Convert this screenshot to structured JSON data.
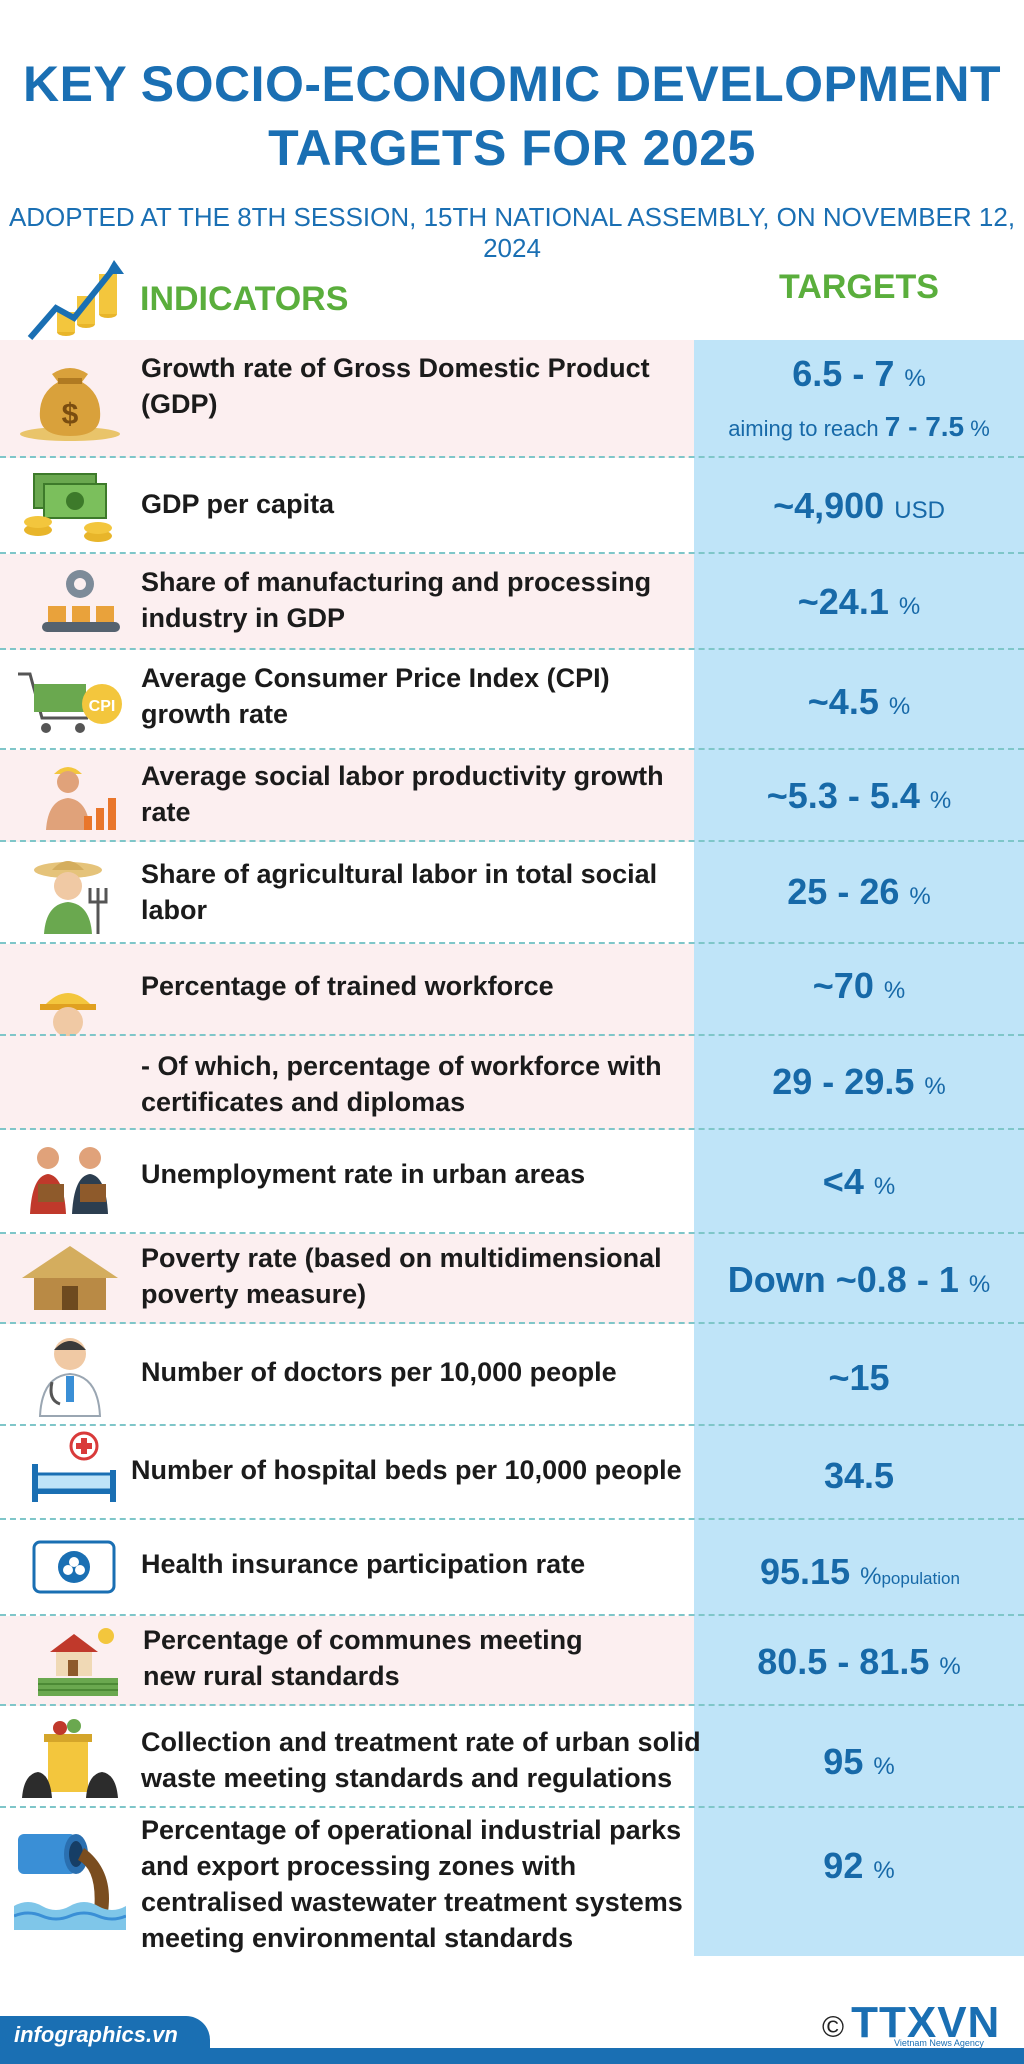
{
  "title_line1": "KEY SOCIO-ECONOMIC DEVELOPMENT",
  "title_line2": "TARGETS FOR 2025",
  "subtitle": "ADOPTED AT THE 8TH SESSION, 15TH NATIONAL ASSEMBLY, ON NOVEMBER 12, 2024",
  "header": {
    "indicators": "INDICATORS",
    "targets": "TARGETS"
  },
  "colors": {
    "title": "#1a6fb3",
    "header": "#5aae3c",
    "target_bg": "#bfe4f8",
    "row_pink": "#fceff0",
    "value": "#1769a8"
  },
  "rows": [
    {
      "icon": "money-bag-icon",
      "label": "Growth rate of Gross Domestic Product (GDP)",
      "value": "6.5 - 7",
      "unit": "%",
      "sub_prefix": "aiming to reach",
      "sub_value": "7 - 7.5",
      "sub_unit": "%"
    },
    {
      "icon": "cash-stack-icon",
      "label": "GDP per capita",
      "value": "~4,900",
      "unit": "USD"
    },
    {
      "icon": "factory-gear-icon",
      "label": "Share of manufacturing and processing industry in GDP",
      "value": "~24.1",
      "unit": "%"
    },
    {
      "icon": "cpi-cart-icon",
      "label": "Average Consumer Price Index (CPI) growth rate",
      "value": "~4.5",
      "unit": "%",
      "icon_text": "CPI"
    },
    {
      "icon": "worker-chart-icon",
      "label": "Average social labor productivity growth rate",
      "value": "~5.3 - 5.4",
      "unit": "%"
    },
    {
      "icon": "farmer-icon",
      "label": "Share of agricultural labor in total social labor",
      "value": "25 - 26",
      "unit": "%"
    },
    {
      "icon": "engineer-icon",
      "label": "Percentage of trained workforce",
      "value": "~70",
      "unit": "%"
    },
    {
      "icon": "",
      "label": "- Of which, percentage of workforce with certificates and diplomas",
      "value": "29 - 29.5",
      "unit": "%"
    },
    {
      "icon": "job-seekers-icon",
      "label": "Unemployment rate in urban areas",
      "value": "<4",
      "unit": "%"
    },
    {
      "icon": "hut-icon",
      "label": "Poverty rate (based on multidimensional poverty measure)",
      "value": "Down ~0.8 - 1",
      "unit": "%"
    },
    {
      "icon": "doctor-icon",
      "label": "Number of doctors per 10,000 people",
      "value": "~15",
      "unit": ""
    },
    {
      "icon": "hospital-bed-icon",
      "label": "Number of hospital beds per 10,000 people",
      "value": "34.5",
      "unit": ""
    },
    {
      "icon": "health-insurance-icon",
      "label": "Health insurance participation rate",
      "value": "95.15",
      "unit": "%",
      "unit2": "population"
    },
    {
      "icon": "rural-house-icon",
      "label": "Percentage of communes meeting new rural standards",
      "value": "80.5 - 81.5",
      "unit": "%"
    },
    {
      "icon": "waste-bin-icon",
      "label": "Collection and treatment rate of urban solid waste meeting standards and regulations",
      "value": "95",
      "unit": "%"
    },
    {
      "icon": "wastewater-pipe-icon",
      "label": "Percentage of operational industrial parks and export processing zones with centralised wastewater treatment systems meeting environmental standards",
      "value": "92",
      "unit": "%"
    }
  ],
  "footer": {
    "site": "infographics.vn",
    "copyright": "©",
    "logo": "TTXVN",
    "logo_sub": "Vietnam News Agency"
  }
}
